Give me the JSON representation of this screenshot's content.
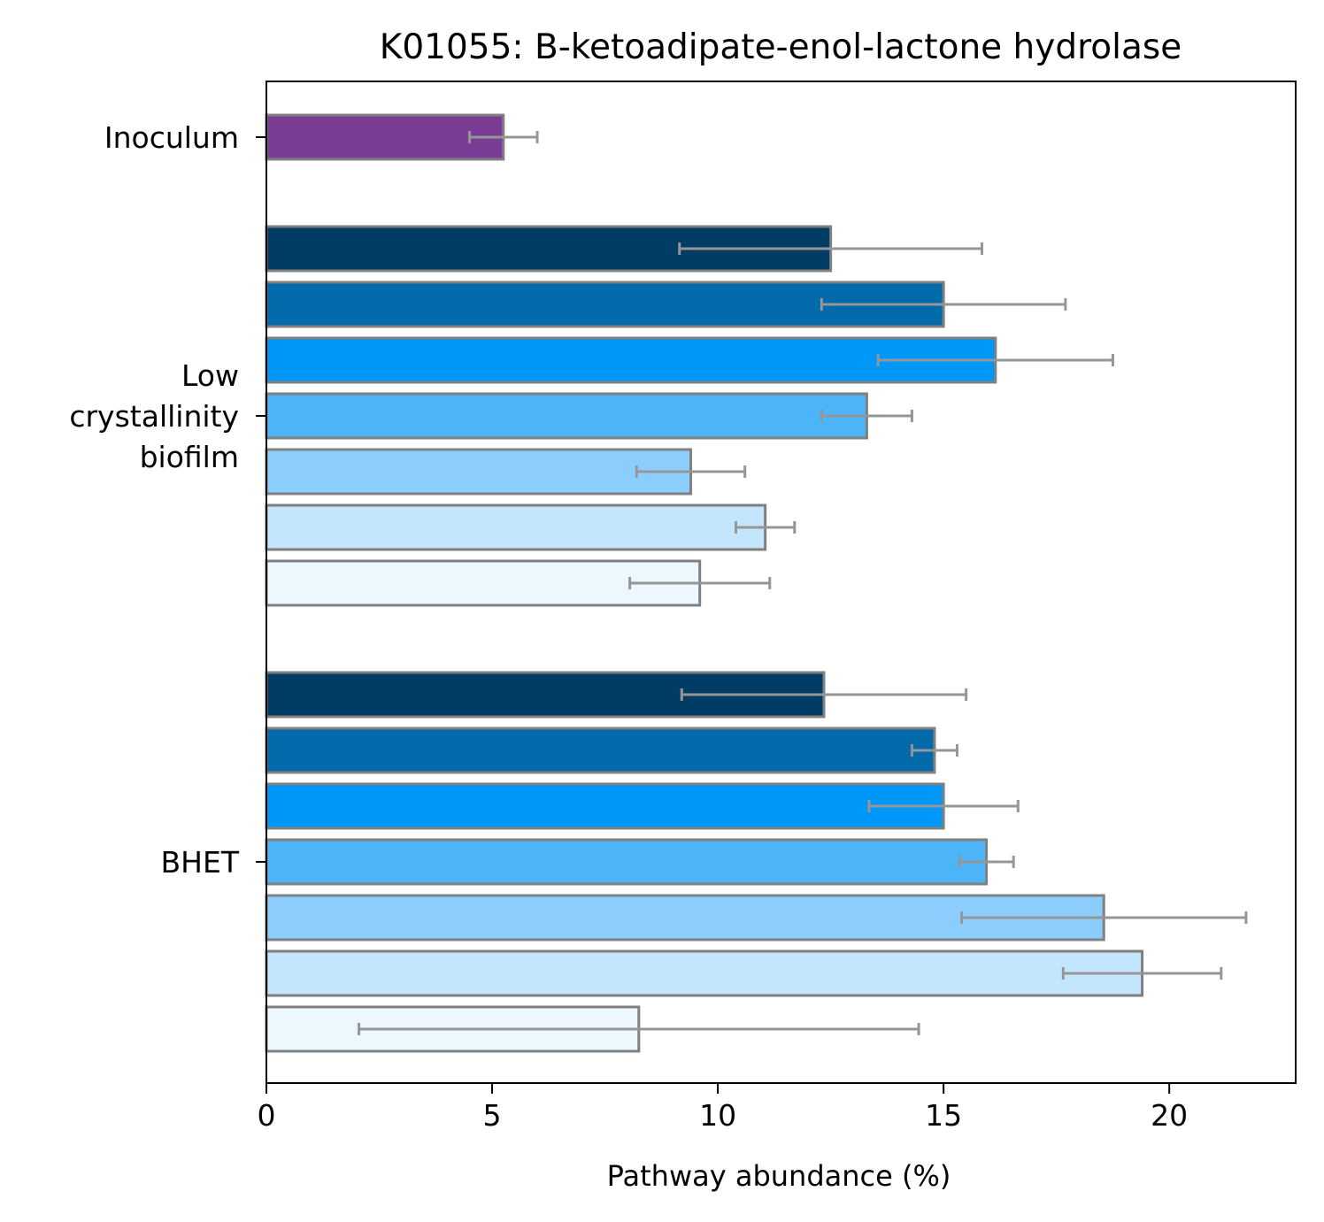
{
  "chart_data": {
    "type": "bar",
    "orientation": "horizontal",
    "title": "K01055: B-ketoadipate-enol-lactone hydrolase",
    "xlabel": "Pathway abundance (%)",
    "ylabel": "",
    "xlim": [
      0,
      22.8
    ],
    "x_ticks": [
      0,
      5,
      10,
      15,
      20
    ],
    "grid": false,
    "legend": "none",
    "colors": {
      "bar_edge": "#808080",
      "error_bar": "#969696",
      "inoculum": "#7b3c96",
      "shades": [
        "#003c64",
        "#006aab",
        "#0098f8",
        "#4cb5f8",
        "#8bcefd",
        "#c4e6fd",
        "#ecf7fe"
      ]
    },
    "groups": [
      {
        "label": "Inoculum",
        "bars": [
          {
            "value": 5.25,
            "error": 0.75,
            "color": "#7b3c96"
          }
        ]
      },
      {
        "label": "Low crystallinity biofilm",
        "bars": [
          {
            "value": 12.5,
            "error": 3.35,
            "color": "#003c64"
          },
          {
            "value": 15.0,
            "error": 2.7,
            "color": "#006aab"
          },
          {
            "value": 16.15,
            "error": 2.6,
            "color": "#0098f8"
          },
          {
            "value": 13.3,
            "error": 1.0,
            "color": "#4cb5f8"
          },
          {
            "value": 9.4,
            "error": 1.2,
            "color": "#8bcefd"
          },
          {
            "value": 11.05,
            "error": 0.65,
            "color": "#c4e6fd"
          },
          {
            "value": 9.6,
            "error": 1.55,
            "color": "#ecf7fe"
          }
        ]
      },
      {
        "label": "BHET",
        "bars": [
          {
            "value": 12.35,
            "error": 3.15,
            "color": "#003c64"
          },
          {
            "value": 14.8,
            "error": 0.5,
            "color": "#006aab"
          },
          {
            "value": 15.0,
            "error": 1.65,
            "color": "#0098f8"
          },
          {
            "value": 15.95,
            "error": 0.6,
            "color": "#4cb5f8"
          },
          {
            "value": 18.55,
            "error": 3.15,
            "color": "#8bcefd"
          },
          {
            "value": 19.4,
            "error": 1.75,
            "color": "#c4e6fd"
          },
          {
            "value": 8.25,
            "error": 6.2,
            "color": "#ecf7fe"
          }
        ]
      }
    ]
  }
}
